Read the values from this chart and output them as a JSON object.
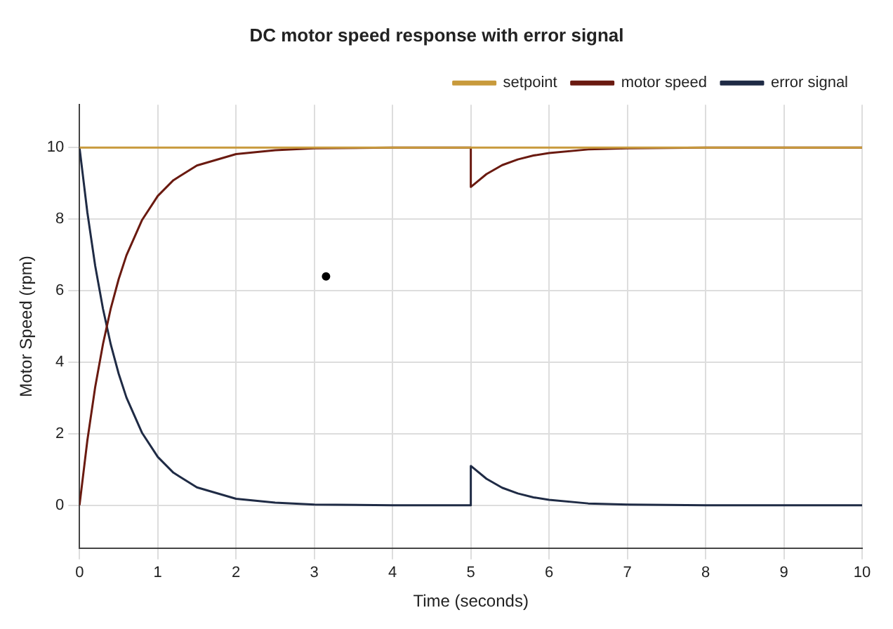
{
  "chart_data": {
    "type": "line",
    "title": "DC motor speed response with error signal",
    "xlabel": "Time (seconds)",
    "ylabel": "Motor Speed (rpm)",
    "xlim": [
      0,
      10
    ],
    "xticks": [
      0,
      1,
      2,
      3,
      4,
      5,
      6,
      7,
      8,
      9,
      10
    ],
    "ylim": [
      -1.2,
      11.2
    ],
    "yticks": [
      0,
      2,
      4,
      6,
      8,
      10
    ],
    "grid": true,
    "legend": "top right",
    "line_style": "solid",
    "series": [
      {
        "name": "setpoint",
        "marker": "none",
        "color": "#c89a3c",
        "x": [
          0,
          10
        ],
        "values": [
          10,
          10
        ]
      },
      {
        "name": "motor speed",
        "marker": "none",
        "color": "#6a1a10",
        "x": [
          0,
          0.1,
          0.2,
          0.3,
          0.4,
          0.5,
          0.6,
          0.8,
          1,
          1.2,
          1.5,
          2,
          2.5,
          3,
          4,
          5,
          5,
          5.2,
          5.4,
          5.6,
          5.8,
          6,
          6.5,
          7,
          8,
          10
        ],
        "values": [
          0,
          1.81,
          3.3,
          4.51,
          5.51,
          6.32,
          6.99,
          7.98,
          8.65,
          9.09,
          9.5,
          9.82,
          9.93,
          9.98,
          10,
          10,
          8.9,
          9.26,
          9.51,
          9.67,
          9.78,
          9.85,
          9.95,
          9.98,
          10,
          10
        ]
      },
      {
        "name": "error signal",
        "marker": "none",
        "color": "#1f2b45",
        "x": [
          0,
          0.1,
          0.2,
          0.3,
          0.4,
          0.5,
          0.6,
          0.8,
          1,
          1.2,
          1.5,
          2,
          2.5,
          3,
          4,
          5,
          5,
          5.2,
          5.4,
          5.6,
          5.8,
          6,
          6.5,
          7,
          8,
          10
        ],
        "values": [
          10,
          8.19,
          6.7,
          5.49,
          4.49,
          3.68,
          3.01,
          2.02,
          1.35,
          0.91,
          0.5,
          0.18,
          0.07,
          0.02,
          0,
          0,
          1.1,
          0.74,
          0.49,
          0.33,
          0.22,
          0.15,
          0.05,
          0.02,
          0,
          0
        ]
      },
      {
        "type": "scatter",
        "marker": "circle",
        "color": "#000000",
        "x": [
          3.15
        ],
        "values": [
          6.4
        ]
      }
    ]
  }
}
